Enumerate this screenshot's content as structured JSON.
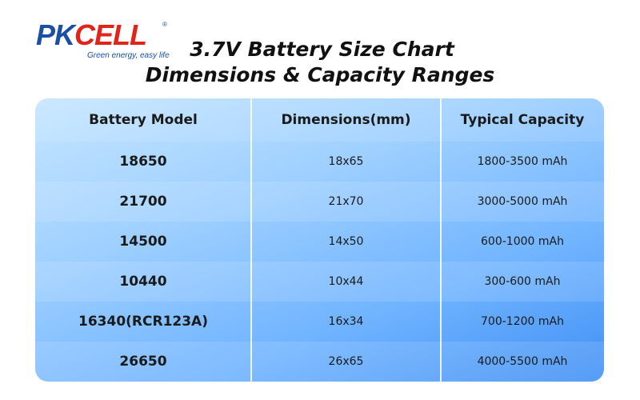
{
  "brand": {
    "name_part1": "PK",
    "name_part2": "CELL",
    "tagline": "Green energy, easy life",
    "colors": {
      "primary": "#1a4fa3",
      "accent": "#e2231a"
    }
  },
  "title": {
    "line1": "3.7V Battery Size Chart",
    "line2": "Dimensions & Capacity Ranges"
  },
  "table": {
    "headers": [
      "Battery Model",
      "Dimensions(mm)",
      "Typical Capacity"
    ],
    "rows": [
      {
        "model": "18650",
        "dimensions": "18x65",
        "capacity": "1800-3500 mAh"
      },
      {
        "model": "21700",
        "dimensions": "21x70",
        "capacity": "3000-5000 mAh"
      },
      {
        "model": "14500",
        "dimensions": "14x50",
        "capacity": "600-1000 mAh"
      },
      {
        "model": "10440",
        "dimensions": "10x44",
        "capacity": "300-600 mAh"
      },
      {
        "model": "16340(RCR123A)",
        "dimensions": "16x34",
        "capacity": "700-1200 mAh"
      },
      {
        "model": "26650",
        "dimensions": "26x65",
        "capacity": "4000-5500 mAh"
      }
    ],
    "colors": {
      "gradient_start": "#c6e6ff",
      "gradient_end": "#3f8ff5"
    }
  }
}
